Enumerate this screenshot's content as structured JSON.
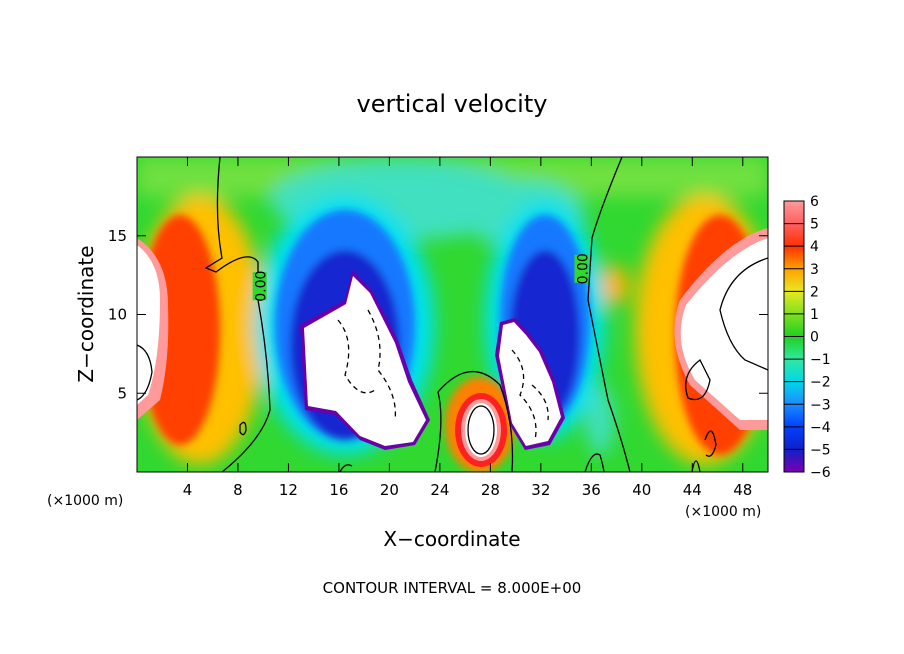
{
  "chart_data": {
    "type": "heatmap",
    "title": "vertical velocity",
    "xlabel": "X−coordinate",
    "ylabel": "Z−coordinate",
    "x_unit_left": "(×1000 m)",
    "x_unit_right": "(×1000 m)",
    "footer": "CONTOUR INTERVAL = 8.000E+00",
    "xlim": [
      0,
      50
    ],
    "ylim": [
      0,
      20
    ],
    "xticks": [
      4,
      8,
      12,
      16,
      20,
      24,
      28,
      32,
      36,
      40,
      44,
      48
    ],
    "yticks": [
      5,
      10,
      15
    ],
    "xtick_labels": [
      "4",
      "8",
      "12",
      "16",
      "20",
      "24",
      "28",
      "32",
      "36",
      "40",
      "44",
      "48"
    ],
    "ytick_labels": [
      "5",
      "10",
      "15"
    ],
    "colorbar": {
      "min": -6,
      "max": 6,
      "ticks": [
        6,
        5,
        4,
        3,
        2,
        1,
        0,
        -1,
        -2,
        -3,
        -4,
        -5,
        -6
      ],
      "tick_labels": [
        "6",
        "5",
        "4",
        "3",
        "2",
        "1",
        "0",
        "−1",
        "−2",
        "−3",
        "−4",
        "−5",
        "−6"
      ],
      "colors": [
        "#7a00b0",
        "#1020c8",
        "#0040ff",
        "#1a8cff",
        "#00d8e8",
        "#30e8a0",
        "#20d020",
        "#80e020",
        "#e8e820",
        "#ffa000",
        "#ff3000",
        "#ff6060",
        "#ff9a9a"
      ]
    },
    "contour_labels": [
      {
        "text": "0.00",
        "x": 9.8,
        "z": 11.8
      },
      {
        "text": "0.00",
        "x": 35.3,
        "z": 12.9
      }
    ]
  }
}
